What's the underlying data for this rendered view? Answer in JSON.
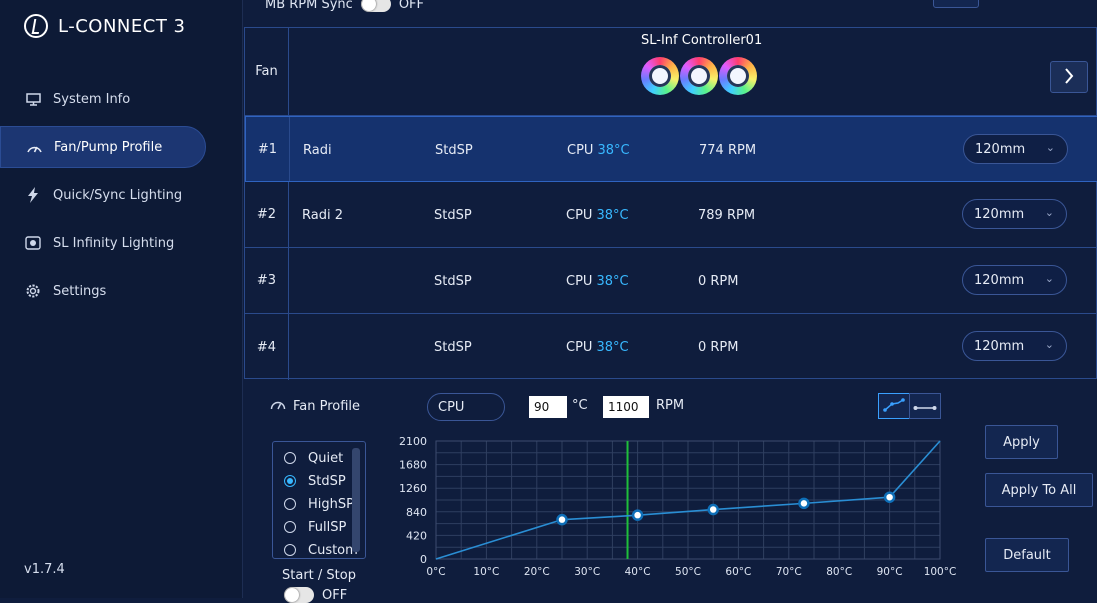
{
  "app": {
    "name": "L-CONNECT 3",
    "version": "v1.7.4"
  },
  "sidebar": {
    "items": [
      {
        "label": "System Info",
        "icon": "monitor-icon"
      },
      {
        "label": "Fan/Pump Profile",
        "icon": "gauge-icon",
        "active": true
      },
      {
        "label": "Quick/Sync Lighting",
        "icon": "lightning-icon"
      },
      {
        "label": "SL Infinity Lighting",
        "icon": "sl-infinity-icon"
      },
      {
        "label": "Settings",
        "icon": "gear-icon"
      }
    ]
  },
  "topbar": {
    "mb_rpm_sync_label": "MB RPM Sync",
    "mb_rpm_sync_state": "OFF"
  },
  "controller": {
    "fan_header": "Fan",
    "name": "SL-Inf Controller01",
    "fan_count": 3
  },
  "fans": [
    {
      "num": "#1",
      "name": "Radi",
      "profile": "StdSP",
      "sensor": "CPU",
      "temp": "38°C",
      "rpm": "774 RPM",
      "size": "120mm",
      "selected": true
    },
    {
      "num": "#2",
      "name": "Radi 2",
      "profile": "StdSP",
      "sensor": "CPU",
      "temp": "38°C",
      "rpm": "789 RPM",
      "size": "120mm"
    },
    {
      "num": "#3",
      "name": "",
      "profile": "StdSP",
      "sensor": "CPU",
      "temp": "38°C",
      "rpm": "0 RPM",
      "size": "120mm"
    },
    {
      "num": "#4",
      "name": "",
      "profile": "StdSP",
      "sensor": "CPU",
      "temp": "38°C",
      "rpm": "0 RPM",
      "size": "120mm"
    }
  ],
  "profile_panel": {
    "label": "Fan Profile",
    "sensor": "CPU",
    "temp_value": "90",
    "temp_unit": "°C",
    "rpm_value": "1100",
    "rpm_unit": "RPM",
    "profiles": [
      {
        "label": "Quiet",
        "selected": false
      },
      {
        "label": "StdSP",
        "selected": true
      },
      {
        "label": "HighSP",
        "selected": false
      },
      {
        "label": "FullSP",
        "selected": false
      },
      {
        "label": "Custom",
        "selected": false
      }
    ],
    "start_stop_label": "Start / Stop",
    "start_stop_state": "OFF",
    "apply_label": "Apply",
    "apply_all_label": "Apply To All",
    "default_label": "Default"
  },
  "chart_data": {
    "type": "line",
    "x_tick_labels": [
      "0°C",
      "10°C",
      "20°C",
      "30°C",
      "40°C",
      "50°C",
      "60°C",
      "70°C",
      "80°C",
      "90°C",
      "100°C"
    ],
    "y_tick_labels": [
      "2100",
      "1680",
      "1260",
      "840",
      "420",
      "0"
    ],
    "xlim": [
      0,
      100
    ],
    "ylim": [
      0,
      2100
    ],
    "series": [
      {
        "x": [
          0,
          25,
          40,
          55,
          73,
          90,
          100
        ],
        "y": [
          0,
          700,
          780,
          880,
          990,
          1100,
          2100
        ],
        "point_markers": [
          25,
          40,
          55,
          73,
          90
        ]
      }
    ],
    "current_temp_marker": 38,
    "grid": true,
    "colors": {
      "line": "#2a8ed4",
      "marker": "#0e6fb8",
      "current_temp": "#1fbf3a",
      "grid": "#2f3f60"
    }
  }
}
